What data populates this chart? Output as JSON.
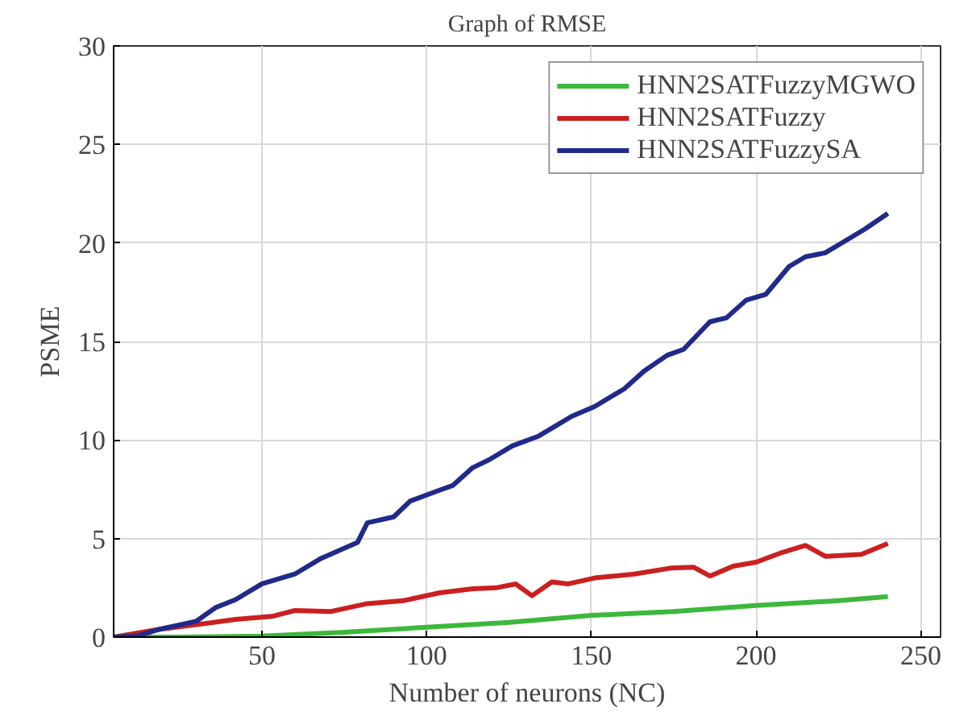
{
  "chart_data": {
    "type": "line",
    "title": "Graph of RMSE",
    "xlabel": "Number of neurons (NC)",
    "ylabel": "PSME",
    "xlim": [
      5,
      256
    ],
    "ylim": [
      0,
      30
    ],
    "xticks": [
      50,
      100,
      150,
      200,
      250
    ],
    "yticks": [
      0,
      5,
      10,
      15,
      20,
      25,
      30
    ],
    "grid": true,
    "legend": "top right",
    "line_style": "solid",
    "series": [
      {
        "name": "HNN2SATFuzzyMGWO",
        "color": "#3cb83c",
        "x": [
          5,
          25,
          50,
          75,
          100,
          125,
          150,
          175,
          200,
          225,
          240
        ],
        "values": [
          0,
          0,
          0.05,
          0.25,
          0.5,
          0.75,
          1.1,
          1.3,
          1.6,
          1.85,
          2.05
        ]
      },
      {
        "name": "HNN2SATFuzzy",
        "color": "#cc1f1f",
        "x": [
          5,
          19,
          31,
          42,
          53,
          60,
          71,
          82,
          93,
          104,
          114,
          121,
          127,
          132,
          138,
          143,
          151,
          163,
          174,
          181,
          186,
          193,
          200,
          208,
          215,
          221,
          232,
          240
        ],
        "values": [
          0,
          0.4,
          0.65,
          0.9,
          1.05,
          1.35,
          1.3,
          1.7,
          1.85,
          2.25,
          2.45,
          2.5,
          2.7,
          2.1,
          2.8,
          2.7,
          3.0,
          3.2,
          3.5,
          3.55,
          3.1,
          3.6,
          3.8,
          4.3,
          4.65,
          4.1,
          4.2,
          4.75
        ]
      },
      {
        "name": "HNN2SATFuzzySA",
        "color": "#1f2a8a",
        "x": [
          5,
          12,
          19,
          30,
          36,
          42,
          50,
          60,
          68,
          79,
          82,
          90,
          95,
          103,
          108,
          114,
          119,
          126,
          134,
          138,
          144,
          151,
          160,
          166,
          173,
          178,
          186,
          191,
          197,
          203,
          210,
          215,
          221,
          227,
          233,
          240
        ],
        "values": [
          0,
          0.05,
          0.4,
          0.8,
          1.5,
          1.9,
          2.7,
          3.2,
          4.0,
          4.8,
          5.8,
          6.1,
          6.9,
          7.4,
          7.7,
          8.6,
          9.0,
          9.7,
          10.2,
          10.6,
          11.2,
          11.7,
          12.6,
          13.5,
          14.3,
          14.6,
          16.0,
          16.2,
          17.1,
          17.4,
          18.8,
          19.3,
          19.5,
          20.1,
          20.7,
          21.5
        ]
      }
    ]
  }
}
